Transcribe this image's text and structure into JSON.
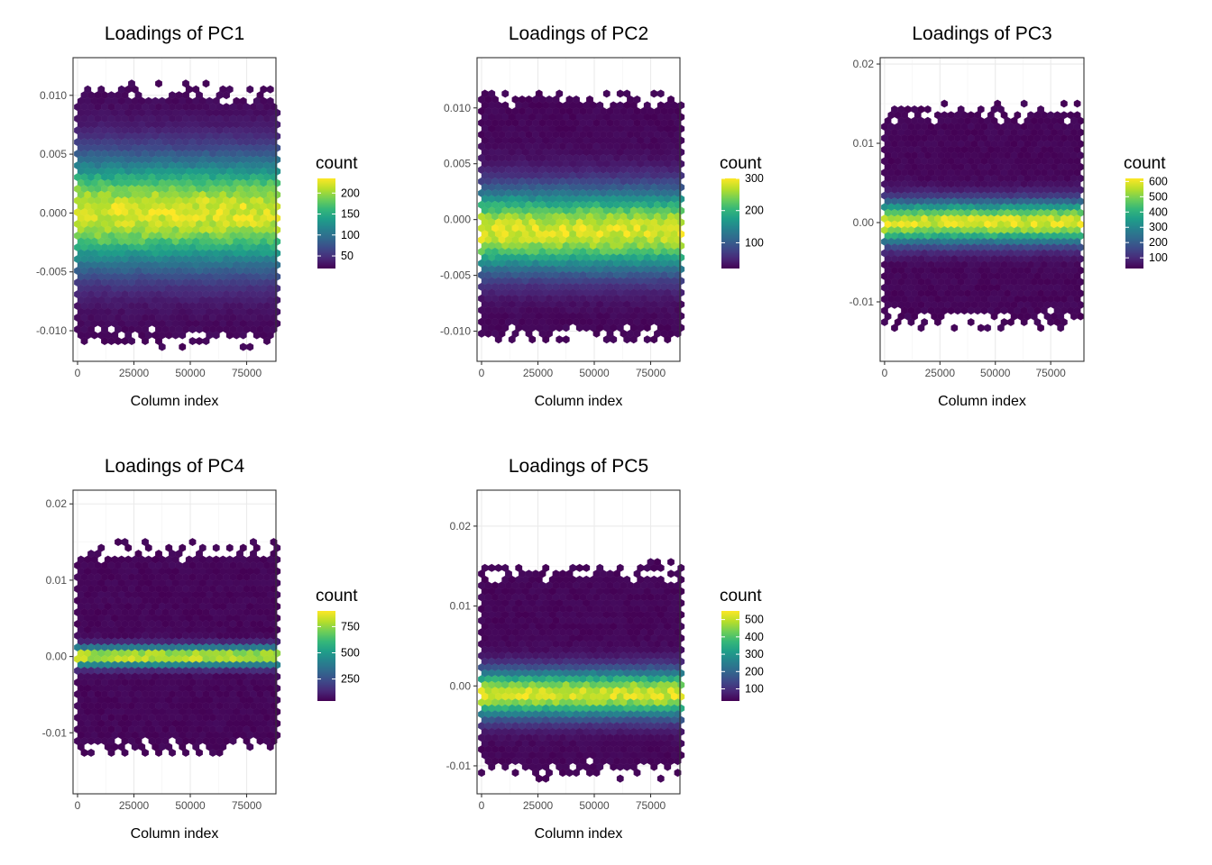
{
  "colorscale": [
    "#440154",
    "#482878",
    "#3e4989",
    "#31688e",
    "#26828e",
    "#1f9e89",
    "#35b779",
    "#6ece58",
    "#b5de2b",
    "#fde725"
  ],
  "chart_data": [
    {
      "type": "heatmap",
      "subtype": "hexbin",
      "title": "Loadings of PC1",
      "xlabel": "Column index",
      "ylabel": "",
      "x_ticks": [
        "0",
        "25000",
        "50000",
        "75000"
      ],
      "y_ticks": [
        "-0.010",
        "-0.005",
        "0.000",
        "0.005",
        "0.010"
      ],
      "xlim": [
        -2000,
        88000
      ],
      "ylim": [
        -0.0126,
        0.0132
      ],
      "x_range": [
        0,
        87000
      ],
      "y_extent": [
        -0.0115,
        0.011
      ],
      "y_center": 0.0,
      "y_sd": 0.0032,
      "max_count": 230,
      "legend": {
        "title": "count",
        "ticks": [
          "50",
          "100",
          "150",
          "200"
        ],
        "min": 20,
        "max": 235
      }
    },
    {
      "type": "heatmap",
      "subtype": "hexbin",
      "title": "Loadings of PC2",
      "xlabel": "Column index",
      "ylabel": "",
      "x_ticks": [
        "0",
        "25000",
        "50000",
        "75000"
      ],
      "y_ticks": [
        "-0.010",
        "-0.005",
        "0.000",
        "0.005",
        "0.010"
      ],
      "xlim": [
        -2000,
        88000
      ],
      "ylim": [
        -0.0127,
        0.0145
      ],
      "x_range": [
        0,
        87000
      ],
      "y_extent": [
        -0.0112,
        0.0118
      ],
      "y_center": -0.001,
      "y_sd": 0.0025,
      "max_count": 300,
      "legend": {
        "title": "count",
        "ticks": [
          "100",
          "200",
          "300"
        ],
        "min": 20,
        "max": 300
      }
    },
    {
      "type": "heatmap",
      "subtype": "hexbin",
      "title": "Loadings of PC3",
      "xlabel": "Column index",
      "ylabel": "",
      "x_ticks": [
        "0",
        "25000",
        "50000",
        "75000"
      ],
      "y_ticks": [
        "-0.01",
        "0.00",
        "0.01",
        "0.02"
      ],
      "xlim": [
        -2000,
        90000
      ],
      "ylim": [
        -0.0175,
        0.0208
      ],
      "x_range": [
        0,
        87000
      ],
      "y_extent": [
        -0.0135,
        0.015
      ],
      "y_center": 0.0,
      "y_sd": 0.0018,
      "max_count": 620,
      "legend": {
        "title": "count",
        "ticks": [
          "100",
          "200",
          "300",
          "400",
          "500",
          "600"
        ],
        "min": 30,
        "max": 620
      }
    },
    {
      "type": "heatmap",
      "subtype": "hexbin",
      "title": "Loadings of PC4",
      "xlabel": "Column index",
      "ylabel": "",
      "x_ticks": [
        "0",
        "25000",
        "50000",
        "75000"
      ],
      "y_ticks": [
        "-0.01",
        "0.00",
        "0.01",
        "0.02"
      ],
      "xlim": [
        -2000,
        88000
      ],
      "ylim": [
        -0.018,
        0.0218
      ],
      "x_range": [
        0,
        87000
      ],
      "y_extent": [
        -0.013,
        0.015
      ],
      "y_center": 0.0,
      "y_sd": 0.0009,
      "max_count": 900,
      "legend": {
        "title": "count",
        "ticks": [
          "250",
          "500",
          "750"
        ],
        "min": 40,
        "max": 900
      }
    },
    {
      "type": "heatmap",
      "subtype": "hexbin",
      "title": "Loadings of PC5",
      "xlabel": "Column index",
      "ylabel": "",
      "x_ticks": [
        "0",
        "25000",
        "50000",
        "75000"
      ],
      "y_ticks": [
        "-0.01",
        "0.00",
        "0.01",
        "0.02"
      ],
      "xlim": [
        -2000,
        88000
      ],
      "ylim": [
        -0.0135,
        0.0245
      ],
      "x_range": [
        0,
        87000
      ],
      "y_extent": [
        -0.0118,
        0.0155
      ],
      "y_center": -0.001,
      "y_sd": 0.002,
      "max_count": 550,
      "legend": {
        "title": "count",
        "ticks": [
          "100",
          "200",
          "300",
          "400",
          "500"
        ],
        "min": 30,
        "max": 550
      }
    }
  ]
}
